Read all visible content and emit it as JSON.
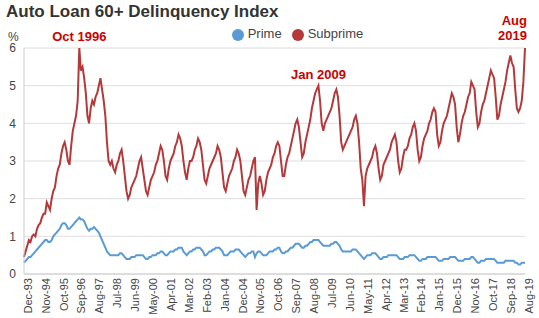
{
  "chart_data": {
    "type": "line",
    "title": "Auto Loan 60+ Delinquency Index",
    "y_label": "%",
    "ylim": [
      0,
      6
    ],
    "yticks": [
      0,
      1,
      2,
      3,
      4,
      5,
      6
    ],
    "grid": true,
    "legend": "top",
    "categories": [
      "Dec-93",
      null,
      null,
      null,
      null,
      null,
      null,
      null,
      null,
      null,
      null,
      "Nov-94",
      null,
      null,
      null,
      null,
      null,
      null,
      null,
      null,
      null,
      null,
      "Oct-95",
      null,
      null,
      null,
      null,
      null,
      null,
      null,
      null,
      null,
      null,
      "Sep-96",
      null,
      null,
      null,
      null,
      null,
      null,
      null,
      null,
      null,
      null,
      "Aug-97",
      null,
      null,
      null,
      null,
      null,
      null,
      null,
      null,
      null,
      null,
      "Jul-98",
      null,
      null,
      null,
      null,
      null,
      null,
      null,
      null,
      null,
      null,
      "Jun-99",
      null,
      null,
      null,
      null,
      null,
      null,
      null,
      null,
      null,
      null,
      "May-00",
      null,
      null,
      null,
      null,
      null,
      null,
      null,
      null,
      null,
      null,
      "Apr-01",
      null,
      null,
      null,
      null,
      null,
      null,
      null,
      null,
      null,
      null,
      "Mar-02",
      null,
      null,
      null,
      null,
      null,
      null,
      null,
      null,
      null,
      null,
      "Feb-03",
      null,
      null,
      null,
      null,
      null,
      null,
      null,
      null,
      null,
      null,
      "Jan-04",
      null,
      null,
      null,
      null,
      null,
      null,
      null,
      null,
      null,
      null,
      "Dec-04",
      null,
      null,
      null,
      null,
      null,
      null,
      null,
      null,
      null,
      null,
      "Nov-05",
      null,
      null,
      null,
      null,
      null,
      null,
      null,
      null,
      null,
      null,
      "Oct-06",
      null,
      null,
      null,
      null,
      null,
      null,
      null,
      null,
      null,
      null,
      "Sep-07",
      null,
      null,
      null,
      null,
      null,
      null,
      null,
      null,
      null,
      null,
      "Aug-08",
      null,
      null,
      null,
      null,
      null,
      null,
      null,
      null,
      null,
      null,
      "Jul-09",
      null,
      null,
      null,
      null,
      null,
      null,
      null,
      null,
      null,
      null,
      "Jun-10",
      null,
      null,
      null,
      null,
      null,
      null,
      null,
      null,
      null,
      null,
      "May-11",
      null,
      null,
      null,
      null,
      null,
      null,
      null,
      null,
      null,
      null,
      "Apr-12",
      null,
      null,
      null,
      null,
      null,
      null,
      null,
      null,
      null,
      null,
      "Mar-13",
      null,
      null,
      null,
      null,
      null,
      null,
      null,
      null,
      null,
      null,
      "Feb-14",
      null,
      null,
      null,
      null,
      null,
      null,
      null,
      null,
      null,
      null,
      "Jan-15",
      null,
      null,
      null,
      null,
      null,
      null,
      null,
      null,
      null,
      null,
      "Dec-15",
      null,
      null,
      null,
      null,
      null,
      null,
      null,
      null,
      null,
      null,
      "Nov-16",
      null,
      null,
      null,
      null,
      null,
      null,
      null,
      null,
      null,
      null,
      "Oct-17",
      null,
      null,
      null,
      null,
      null,
      null,
      null,
      null,
      null,
      null,
      "Sep-18",
      null,
      null,
      null,
      null,
      null,
      null,
      null,
      null,
      null,
      null,
      "Aug-19"
    ],
    "series": [
      {
        "name": "Prime",
        "color": "#5b9bd5",
        "values": [
          0.3,
          0.35,
          0.4,
          0.45,
          0.45,
          0.5,
          0.55,
          0.6,
          0.65,
          0.7,
          0.75,
          0.8,
          0.85,
          0.9,
          0.9,
          0.85,
          0.85,
          0.9,
          1.0,
          1.05,
          1.1,
          1.15,
          1.2,
          1.3,
          1.35,
          1.35,
          1.3,
          1.2,
          1.2,
          1.25,
          1.3,
          1.35,
          1.4,
          1.45,
          1.5,
          1.45,
          1.45,
          1.4,
          1.3,
          1.2,
          1.15,
          1.2,
          1.2,
          1.25,
          1.2,
          1.15,
          1.1,
          1.0,
          0.9,
          0.8,
          0.7,
          0.6,
          0.55,
          0.5,
          0.5,
          0.5,
          0.5,
          0.5,
          0.5,
          0.55,
          0.55,
          0.5,
          0.45,
          0.4,
          0.4,
          0.4,
          0.45,
          0.45,
          0.45,
          0.5,
          0.5,
          0.5,
          0.5,
          0.5,
          0.45,
          0.4,
          0.4,
          0.45,
          0.45,
          0.5,
          0.5,
          0.5,
          0.55,
          0.55,
          0.6,
          0.6,
          0.55,
          0.5,
          0.5,
          0.55,
          0.6,
          0.6,
          0.6,
          0.65,
          0.65,
          0.7,
          0.7,
          0.7,
          0.6,
          0.55,
          0.5,
          0.55,
          0.6,
          0.6,
          0.65,
          0.65,
          0.7,
          0.7,
          0.7,
          0.65,
          0.6,
          0.5,
          0.5,
          0.55,
          0.6,
          0.6,
          0.65,
          0.65,
          0.7,
          0.7,
          0.7,
          0.65,
          0.6,
          0.5,
          0.5,
          0.5,
          0.55,
          0.6,
          0.6,
          0.6,
          0.65,
          0.65,
          0.65,
          0.6,
          0.55,
          0.5,
          0.45,
          0.5,
          0.55,
          0.55,
          0.6,
          0.6,
          0.45,
          0.55,
          0.6,
          0.6,
          0.55,
          0.5,
          0.5,
          0.5,
          0.55,
          0.6,
          0.6,
          0.6,
          0.65,
          0.65,
          0.7,
          0.7,
          0.6,
          0.55,
          0.55,
          0.6,
          0.6,
          0.65,
          0.7,
          0.7,
          0.75,
          0.8,
          0.8,
          0.8,
          0.75,
          0.7,
          0.7,
          0.75,
          0.75,
          0.8,
          0.85,
          0.85,
          0.9,
          0.9,
          0.9,
          0.9,
          0.85,
          0.8,
          0.75,
          0.75,
          0.75,
          0.75,
          0.75,
          0.8,
          0.8,
          0.85,
          0.85,
          0.8,
          0.75,
          0.65,
          0.6,
          0.6,
          0.6,
          0.6,
          0.6,
          0.6,
          0.65,
          0.65,
          0.65,
          0.6,
          0.55,
          0.5,
          0.45,
          0.4,
          0.45,
          0.5,
          0.5,
          0.5,
          0.55,
          0.55,
          0.55,
          0.5,
          0.45,
          0.4,
          0.4,
          0.45,
          0.45,
          0.45,
          0.5,
          0.5,
          0.5,
          0.5,
          0.5,
          0.5,
          0.45,
          0.4,
          0.4,
          0.4,
          0.45,
          0.45,
          0.45,
          0.5,
          0.5,
          0.5,
          0.5,
          0.45,
          0.4,
          0.35,
          0.35,
          0.4,
          0.4,
          0.4,
          0.45,
          0.45,
          0.45,
          0.45,
          0.45,
          0.45,
          0.4,
          0.35,
          0.35,
          0.35,
          0.4,
          0.4,
          0.4,
          0.4,
          0.45,
          0.45,
          0.45,
          0.45,
          0.4,
          0.35,
          0.35,
          0.35,
          0.35,
          0.4,
          0.4,
          0.4,
          0.4,
          0.45,
          0.45,
          0.4,
          0.35,
          0.3,
          0.3,
          0.35,
          0.35,
          0.35,
          0.4,
          0.4,
          0.4,
          0.4,
          0.4,
          0.4,
          0.35,
          0.3,
          0.3,
          0.3,
          0.3,
          0.3,
          0.35,
          0.35,
          0.35,
          0.35,
          0.35,
          0.35,
          0.3,
          0.3,
          0.25,
          0.25,
          0.3,
          0.3,
          0.3
        ]
      },
      {
        "name": "Subprime",
        "color": "#b5393a",
        "values": [
          0.45,
          0.6,
          0.75,
          0.9,
          0.85,
          1.0,
          1.05,
          1.0,
          1.2,
          1.3,
          1.35,
          1.5,
          1.6,
          1.6,
          1.9,
          1.8,
          1.7,
          2.0,
          2.2,
          2.3,
          2.6,
          2.8,
          2.9,
          3.2,
          3.4,
          3.5,
          3.3,
          3.0,
          2.9,
          3.4,
          3.8,
          4.0,
          4.2,
          4.6,
          6.0,
          5.4,
          5.5,
          5.2,
          4.8,
          4.2,
          4.0,
          4.4,
          4.6,
          4.5,
          4.7,
          4.8,
          5.0,
          5.2,
          4.9,
          4.6,
          4.2,
          3.5,
          3.0,
          2.9,
          3.0,
          2.8,
          2.7,
          2.9,
          3.0,
          3.2,
          3.3,
          3.0,
          2.6,
          2.2,
          2.0,
          2.1,
          2.3,
          2.4,
          2.5,
          2.6,
          2.8,
          3.0,
          3.1,
          2.8,
          2.5,
          2.2,
          2.1,
          2.3,
          2.5,
          2.6,
          2.7,
          2.9,
          3.0,
          3.2,
          3.4,
          3.3,
          3.0,
          2.6,
          2.5,
          2.8,
          3.0,
          3.1,
          3.2,
          3.4,
          3.5,
          3.7,
          3.6,
          3.4,
          3.0,
          2.7,
          2.5,
          2.8,
          3.0,
          3.0,
          3.1,
          3.3,
          3.4,
          3.6,
          3.5,
          3.3,
          2.9,
          2.5,
          2.4,
          2.6,
          2.8,
          2.9,
          3.0,
          3.1,
          3.2,
          3.4,
          3.3,
          3.1,
          2.7,
          2.3,
          2.2,
          2.4,
          2.6,
          2.7,
          2.8,
          3.0,
          3.1,
          3.3,
          3.2,
          3.0,
          2.6,
          2.2,
          2.1,
          2.3,
          2.5,
          2.6,
          2.8,
          3.0,
          3.1,
          1.7,
          2.4,
          2.6,
          2.4,
          2.1,
          2.2,
          2.5,
          2.7,
          2.8,
          2.9,
          3.1,
          3.2,
          3.4,
          3.5,
          3.4,
          3.0,
          2.6,
          2.6,
          2.9,
          3.1,
          3.2,
          3.4,
          3.6,
          3.8,
          4.0,
          4.1,
          3.9,
          3.5,
          3.1,
          3.2,
          3.5,
          3.7,
          3.9,
          4.1,
          4.4,
          4.6,
          4.8,
          4.9,
          5.0,
          4.6,
          4.0,
          3.8,
          4.0,
          4.1,
          4.2,
          4.3,
          4.4,
          4.6,
          4.8,
          4.9,
          4.7,
          4.2,
          3.5,
          3.3,
          3.4,
          3.5,
          3.6,
          3.7,
          3.8,
          3.9,
          4.1,
          4.2,
          4.0,
          3.5,
          2.8,
          2.5,
          1.8,
          2.6,
          2.8,
          2.9,
          3.0,
          3.1,
          3.3,
          3.4,
          3.2,
          2.8,
          2.5,
          2.6,
          2.9,
          3.0,
          3.1,
          3.2,
          3.3,
          3.5,
          3.6,
          3.7,
          3.5,
          3.0,
          2.7,
          2.8,
          3.1,
          3.3,
          3.3,
          3.4,
          3.6,
          3.7,
          3.9,
          4.0,
          3.8,
          3.3,
          3.0,
          3.1,
          3.4,
          3.6,
          3.7,
          3.8,
          4.0,
          4.1,
          4.3,
          4.4,
          4.3,
          3.7,
          3.4,
          3.5,
          3.8,
          4.0,
          4.1,
          4.2,
          4.4,
          4.6,
          4.8,
          4.7,
          4.5,
          3.9,
          3.5,
          3.7,
          4.0,
          4.2,
          4.3,
          4.5,
          4.7,
          4.8,
          5.1,
          5.0,
          4.9,
          4.3,
          3.9,
          4.0,
          4.3,
          4.5,
          4.6,
          4.8,
          5.0,
          5.2,
          5.4,
          5.3,
          5.2,
          4.7,
          4.1,
          4.2,
          4.5,
          4.7,
          4.9,
          5.1,
          5.4,
          5.6,
          5.8,
          5.6,
          5.5,
          4.9,
          4.4,
          4.3,
          4.4,
          4.6,
          5.1,
          6.0
        ]
      }
    ],
    "annotations": [
      {
        "text": "Oct 1996",
        "x": 34,
        "y": 6.0,
        "color": "#cc0000"
      },
      {
        "text": "Jan 2009",
        "x": 181,
        "y": 5.0,
        "color": "#cc0000"
      },
      {
        "text": "Aug 2019",
        "x": 308,
        "y": 6.0,
        "color": "#cc0000"
      }
    ]
  }
}
